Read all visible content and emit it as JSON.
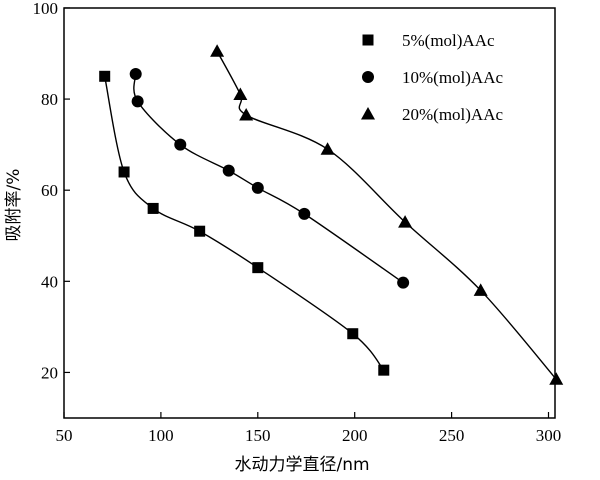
{
  "chart_data": {
    "type": "line",
    "xlabel": "水动力学直径/nm",
    "ylabel": "吸附率/%",
    "xlim": [
      50,
      310
    ],
    "ylim": [
      10,
      100
    ],
    "xticks": [
      50,
      100,
      150,
      200,
      250,
      300
    ],
    "yticks": [
      20,
      40,
      60,
      80,
      100
    ],
    "xtick_labels": [
      "50",
      "100",
      "150",
      "200",
      "250",
      "300"
    ],
    "ytick_labels": [
      "20",
      "40",
      "60",
      "80",
      "100"
    ],
    "grid": false,
    "legend_position": "top-right",
    "series": [
      {
        "name": "5%(mol)AAc",
        "marker": "square",
        "points": [
          [
            71,
            85
          ],
          [
            81,
            64
          ],
          [
            96,
            56
          ],
          [
            120,
            51
          ],
          [
            150,
            43
          ],
          [
            199,
            28.5
          ],
          [
            215,
            20.5
          ]
        ]
      },
      {
        "name": "10%(mol)AAc",
        "marker": "circle",
        "points": [
          [
            87,
            85.5
          ],
          [
            88,
            79.5
          ],
          [
            110,
            70
          ],
          [
            135,
            64.3
          ],
          [
            150,
            60.5
          ],
          [
            174,
            54.8
          ],
          [
            225,
            39.7
          ]
        ]
      },
      {
        "name": "20%(mol)AAc",
        "marker": "triangle",
        "points": [
          [
            129,
            90.5
          ],
          [
            141,
            81
          ],
          [
            144,
            76.5
          ],
          [
            186,
            69
          ],
          [
            226,
            53
          ],
          [
            265,
            38
          ],
          [
            304,
            18.5
          ]
        ]
      }
    ]
  }
}
